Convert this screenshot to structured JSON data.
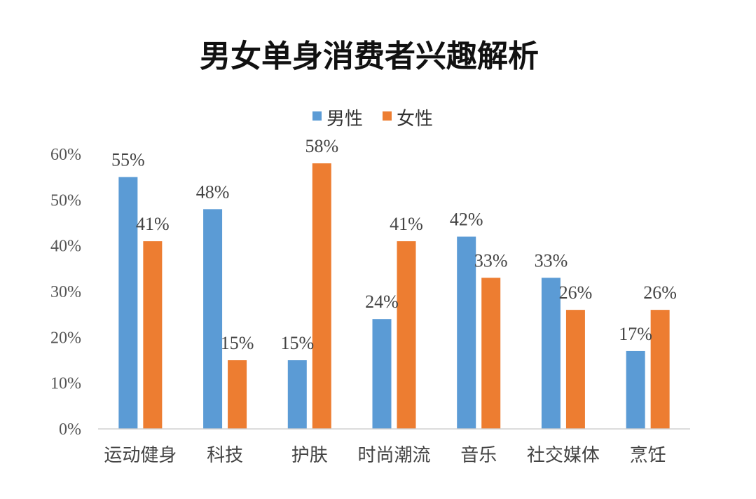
{
  "chart_data": {
    "type": "bar",
    "title": "男女单身消费者兴趣解析",
    "categories": [
      "运动健身",
      "科技",
      "护肤",
      "时尚潮流",
      "音乐",
      "社交媒体",
      "烹饪"
    ],
    "series": [
      {
        "name": "男性",
        "values": [
          55,
          48,
          15,
          24,
          42,
          33,
          17
        ],
        "labels": [
          "55%",
          "48%",
          "15%",
          "24%",
          "42%",
          "33%",
          "17%"
        ]
      },
      {
        "name": "女性",
        "values": [
          41,
          15,
          58,
          41,
          33,
          26,
          26
        ],
        "labels": [
          "41%",
          "15%",
          "58%",
          "41%",
          "33%",
          "26%",
          "26%"
        ]
      }
    ],
    "ylim": [
      0,
      60
    ],
    "yticks": [
      "0%",
      "10%",
      "20%",
      "30%",
      "40%",
      "50%",
      "60%"
    ],
    "grid": false,
    "legend": "top",
    "colors": {
      "male": "#5b9bd5",
      "female": "#ed7d31"
    }
  }
}
